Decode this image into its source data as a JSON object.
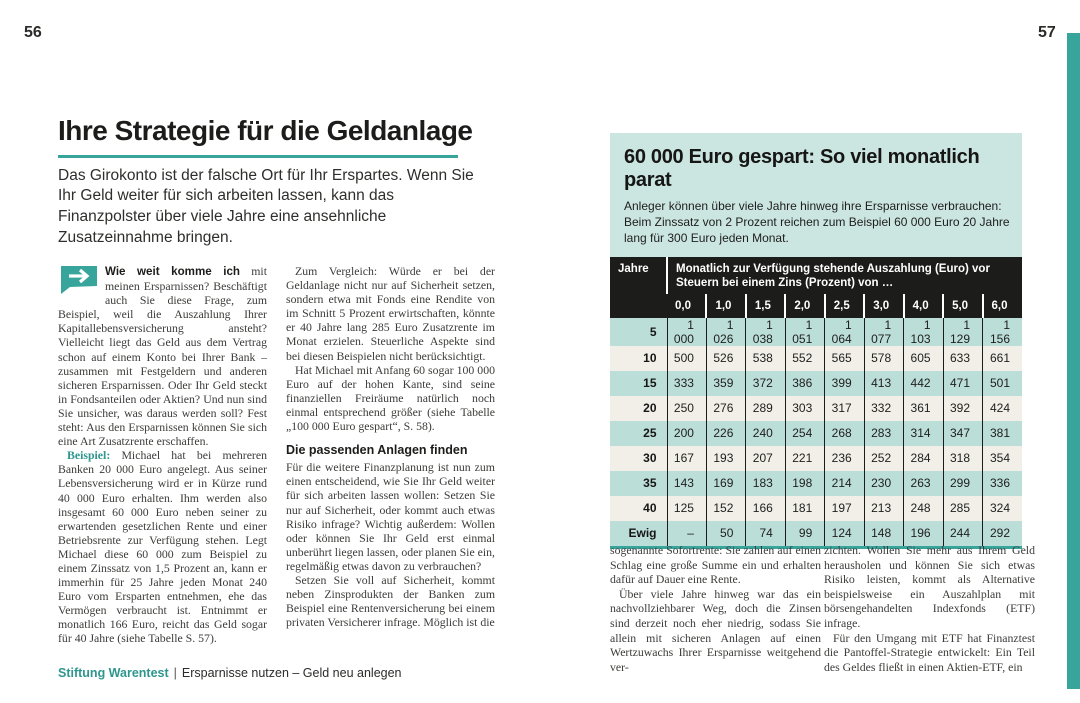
{
  "colors": {
    "accent_teal": "#38a59d",
    "brand_teal": "#2e968e",
    "infobox_bg": "#cbe5e1",
    "row_teal": "#bcded9",
    "row_cream": "#f1efe8",
    "header_black": "#1c1c1a"
  },
  "left_page": {
    "page_number": "56",
    "title": "Ihre Strategie für die Geldanlage",
    "standfirst": "Das Girokonto ist der falsche Ort für Ihr Erspartes. Wenn Sie Ihr Geld weiter für sich arbeiten lassen, kann das Finanzpolster über viele Jahre eine ansehnliche Zusatzeinnahme bringen.",
    "col1": {
      "intro_bold": "Wie weit komme ich",
      "intro_rest": " mit meinen Ersparnissen? Beschäftigt auch Sie diese Frage, zum Beispiel, weil die Auszahlung Ihrer Kapitallebensversicherung ansteht? Vielleicht liegt das Geld aus dem Vertrag schon auf einem Konto bei Ihrer Bank – zusammen mit Festgeldern und anderen sicheren Ersparnissen. Oder Ihr Geld steckt in Fondsanteilen oder Aktien? Und nun sind Sie unsicher, was daraus werden soll? Fest steht: Aus den Ersparnissen können Sie sich eine Art Zusatzrente erschaffen.",
      "beispiel_label": "Beispiel:",
      "beispiel_text": " Michael hat bei mehreren Banken 20 000 Euro angelegt. Aus seiner Lebensversicherung wird er in Kürze rund 40 000 Euro erhalten. Ihm werden also insgesamt 60 000 Euro neben seiner zu erwartenden gesetzlichen Rente und einer Betriebsrente zur Verfügung stehen. Legt Michael diese 60 000 zum Beispiel zu einem Zinssatz von 1,5 Prozent an, kann er immerhin für 25 Jahre jeden Monat 240 Euro vom Ersparten entnehmen, ehe das Vermögen verbraucht ist. Entnimmt er monatlich 166 Euro, reicht das Geld sogar für 40 Jahre (siehe Tabelle S. 57)."
    },
    "col2": {
      "para1": "Zum Vergleich: Würde er bei der Geldanlage nicht nur auf Sicherheit setzen, sondern etwa mit Fonds eine Rendite von im Schnitt 5 Prozent erwirtschaften, könnte er 40 Jahre lang 285 Euro Zusatzrente im Monat erzielen. Steuerliche Aspekte sind bei diesen Beispielen nicht berücksichtigt.",
      "para2": "Hat Michael mit Anfang 60 sogar 100 000 Euro auf der hohen Kante, sind seine finanziellen Freiräume natürlich noch einmal entsprechend größer (siehe Tabelle „100 000 Euro gespart“, S. 58).",
      "heading": "Die passenden Anlagen finden",
      "para3": "Für die weitere Finanzplanung ist nun zum einen entscheidend, wie Sie Ihr Geld weiter für sich arbeiten lassen wollen: Setzen Sie nur auf Sicherheit, oder kommt auch etwas Risiko infrage? Wichtig außerdem: Wollen oder können Sie Ihr Geld erst einmal unberührt liegen lassen, oder planen Sie ein, regelmäßig etwas davon zu verbrauchen?",
      "para4": "Setzen Sie voll auf Sicherheit, kommt neben Zinsprodukten der Banken zum Beispiel eine Rentenversicherung bei einem privaten Versicherer infrage. Möglich ist die"
    },
    "footer": {
      "brand": "Stiftung Warentest",
      "separator": "|",
      "doc_title": "Ersparnisse nutzen – Geld neu anlegen"
    }
  },
  "right_page": {
    "page_number": "57",
    "infobox": {
      "title": "60 000 Euro gespart: So viel monatlich parat",
      "subtitle": "Anleger können über viele Jahre hinweg ihre Ersparnisse verbrauchen: Beim Zinssatz von 2 Prozent reichen zum Beispiel 60 000 Euro 20 Jahre lang für 300 Euro jeden Monat.",
      "table": {
        "col_group_label": "Jahre",
        "col_group_header": "Monatlich zur Verfügung stehende Auszahlung (Euro) vor Steuern bei einem Zins (Prozent) von …",
        "interest_cols": [
          "0,0",
          "1,0",
          "1,5",
          "2,0",
          "2,5",
          "3,0",
          "4,0",
          "5,0",
          "6,0"
        ],
        "rows": [
          {
            "label": "5",
            "values": [
              "1 000",
              "1 026",
              "1 038",
              "1 051",
              "1 064",
              "1 077",
              "1 103",
              "1 129",
              "1 156"
            ]
          },
          {
            "label": "10",
            "values": [
              "500",
              "526",
              "538",
              "552",
              "565",
              "578",
              "605",
              "633",
              "661"
            ]
          },
          {
            "label": "15",
            "values": [
              "333",
              "359",
              "372",
              "386",
              "399",
              "413",
              "442",
              "471",
              "501"
            ]
          },
          {
            "label": "20",
            "values": [
              "250",
              "276",
              "289",
              "303",
              "317",
              "332",
              "361",
              "392",
              "424"
            ]
          },
          {
            "label": "25",
            "values": [
              "200",
              "226",
              "240",
              "254",
              "268",
              "283",
              "314",
              "347",
              "381"
            ]
          },
          {
            "label": "30",
            "values": [
              "167",
              "193",
              "207",
              "221",
              "236",
              "252",
              "284",
              "318",
              "354"
            ]
          },
          {
            "label": "35",
            "values": [
              "143",
              "169",
              "183",
              "198",
              "214",
              "230",
              "263",
              "299",
              "336"
            ]
          },
          {
            "label": "40",
            "values": [
              "125",
              "152",
              "166",
              "181",
              "197",
              "213",
              "248",
              "285",
              "324"
            ]
          },
          {
            "label": "Ewig",
            "values": [
              "–",
              "50",
              "74",
              "99",
              "124",
              "148",
              "196",
              "244",
              "292"
            ]
          }
        ]
      }
    },
    "colL": {
      "para1": "sogenannte Sofortrente: Sie zahlen auf einen Schlag eine große Summe ein und erhalten dafür auf Dauer eine Rente.",
      "para2": "Über viele Jahre hinweg war das ein nachvollziehbarer Weg, doch die Zinsen sind derzeit noch eher niedrig, sodass Sie allein mit sicheren Anlagen auf einen Wertzuwachs Ihrer Ersparnisse weitgehend ver-"
    },
    "colR": {
      "para1": "zichten. Wollen Sie mehr aus Ihrem Geld herausholen und können Sie sich etwas Risiko leisten, kommt als Alternative beispielsweise ein Auszahlplan mit börsengehandelten Indexfonds (ETF) infrage.",
      "para2": "Für den Umgang mit ETF hat Finanztest die Pantoffel-Strategie entwickelt: Ein Teil des Geldes fließt in einen Aktien-ETF, ein"
    }
  }
}
